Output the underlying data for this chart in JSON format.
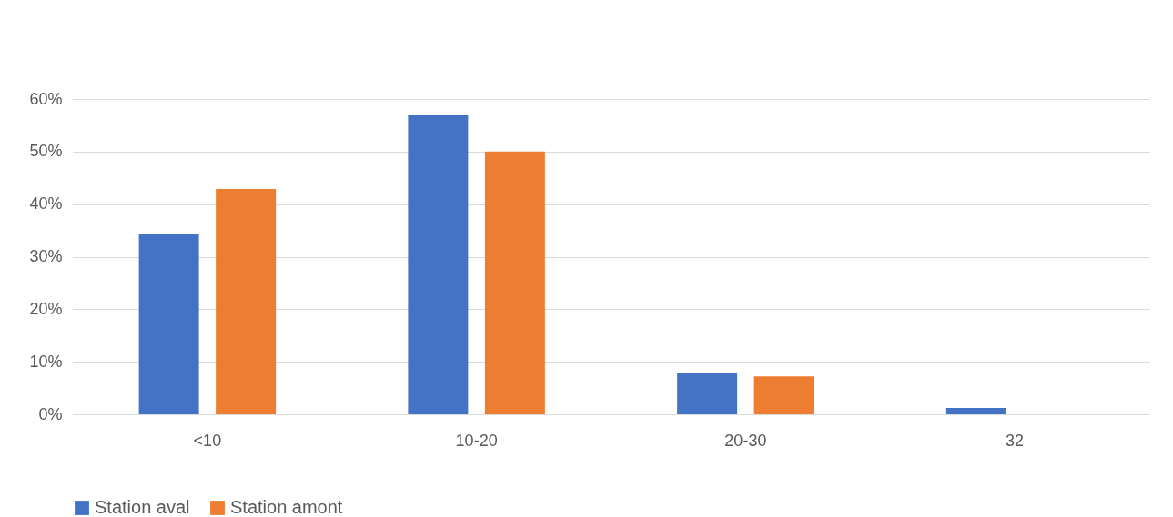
{
  "chart_data": {
    "type": "bar",
    "categories": [
      "<10",
      "10-20",
      "20-30",
      "32"
    ],
    "series": [
      {
        "name": "Station aval",
        "color": "#4472c4",
        "values": [
          34.4,
          56.9,
          7.8,
          1.2
        ]
      },
      {
        "name": "Station amont",
        "color": "#ed7d31",
        "values": [
          42.9,
          50,
          7.2,
          0
        ]
      }
    ],
    "ylim": [
      0,
      60
    ],
    "yticks": [
      {
        "value": 0,
        "label": "0%"
      },
      {
        "value": 10,
        "label": "10%"
      },
      {
        "value": 20,
        "label": "20%"
      },
      {
        "value": 30,
        "label": "30%"
      },
      {
        "value": 40,
        "label": "40%"
      },
      {
        "value": 50,
        "label": "50%"
      },
      {
        "value": 60,
        "label": "60%"
      }
    ],
    "grid": "y",
    "legend": "bottom"
  }
}
